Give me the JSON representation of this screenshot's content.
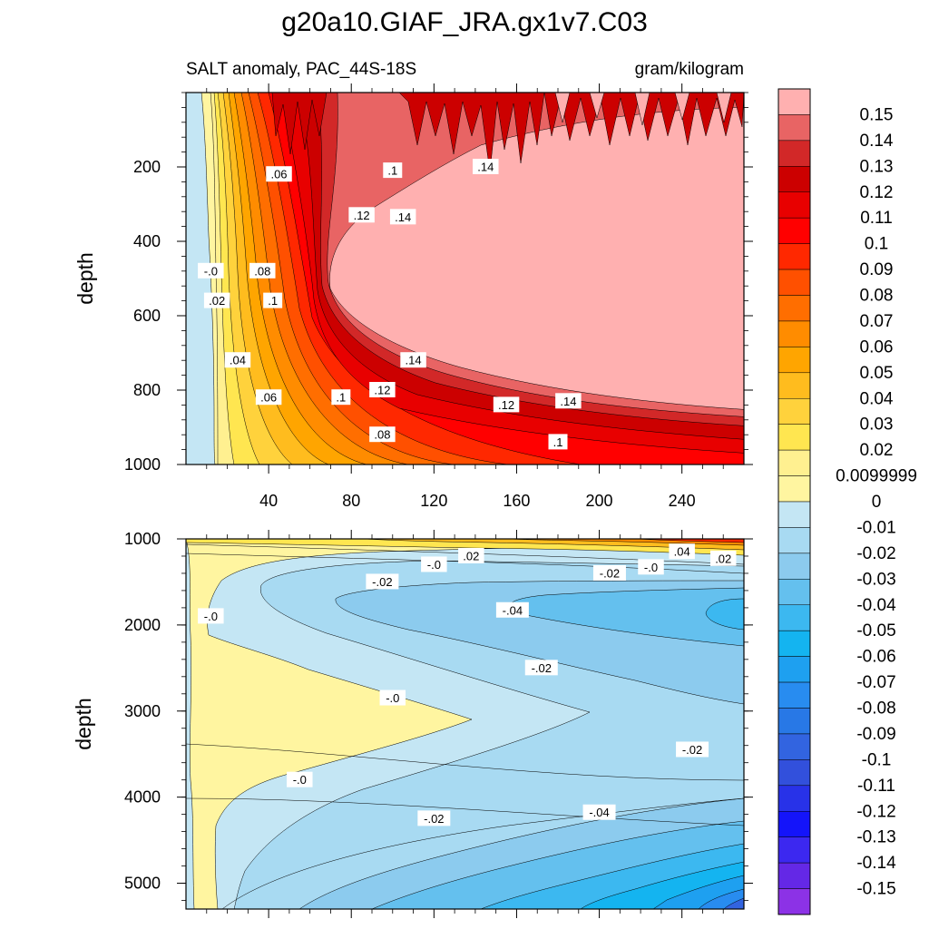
{
  "chart_data": {
    "type": "contour",
    "title": "g20a10.GIAF_JRA.gx1v7.C03",
    "subtitle_left": "SALT anomaly, PAC_44S-18S",
    "subtitle_right": "gram/kilogram",
    "xlabel": "",
    "x_ticks": [
      "40",
      "80",
      "120",
      "160",
      "200",
      "240"
    ],
    "x_tick_values": [
      40,
      80,
      120,
      160,
      200,
      240
    ],
    "xlim": [
      0,
      270
    ],
    "panels": [
      {
        "name": "upper",
        "ylabel": "depth",
        "ylim": [
          0,
          1000
        ],
        "y_ticks": [
          "200",
          "400",
          "600",
          "800",
          "1000"
        ],
        "y_tick_values": [
          200,
          400,
          600,
          800,
          1000
        ],
        "contour_labels": [
          {
            "text": ".06",
            "x": 45,
            "y": 220
          },
          {
            "text": ".1",
            "x": 100,
            "y": 210
          },
          {
            "text": ".14",
            "x": 145,
            "y": 200
          },
          {
            "text": ".12",
            "x": 85,
            "y": 330
          },
          {
            "text": ".14",
            "x": 105,
            "y": 335
          },
          {
            "text": "-.0",
            "x": 12,
            "y": 480
          },
          {
            "text": ".08",
            "x": 37,
            "y": 480
          },
          {
            "text": ".02",
            "x": 15,
            "y": 560
          },
          {
            "text": ".1",
            "x": 42,
            "y": 560
          },
          {
            "text": ".04",
            "x": 25,
            "y": 720
          },
          {
            "text": ".14",
            "x": 110,
            "y": 720
          },
          {
            "text": ".06",
            "x": 40,
            "y": 820
          },
          {
            "text": ".1",
            "x": 75,
            "y": 820
          },
          {
            "text": ".12",
            "x": 95,
            "y": 800
          },
          {
            "text": ".12",
            "x": 155,
            "y": 840
          },
          {
            "text": ".14",
            "x": 185,
            "y": 830
          },
          {
            "text": ".08",
            "x": 95,
            "y": 920
          },
          {
            "text": ".1",
            "x": 180,
            "y": 940
          }
        ]
      },
      {
        "name": "lower",
        "ylabel": "depth",
        "ylim": [
          1000,
          5300
        ],
        "y_ticks": [
          "1000",
          "2000",
          "3000",
          "4000",
          "5000"
        ],
        "y_tick_values": [
          1000,
          2000,
          3000,
          4000,
          5000
        ],
        "contour_labels": [
          {
            "text": "-.0",
            "x": 120,
            "y": 1300
          },
          {
            "text": ".02",
            "x": 138,
            "y": 1200
          },
          {
            "text": ".04",
            "x": 240,
            "y": 1150
          },
          {
            "text": ".02",
            "x": 260,
            "y": 1230
          },
          {
            "text": "-.02",
            "x": 95,
            "y": 1500
          },
          {
            "text": "-.02",
            "x": 205,
            "y": 1400
          },
          {
            "text": "-.0",
            "x": 225,
            "y": 1330
          },
          {
            "text": "-.0",
            "x": 12,
            "y": 1900
          },
          {
            "text": "-.04",
            "x": 158,
            "y": 1830
          },
          {
            "text": "-.02",
            "x": 172,
            "y": 2500
          },
          {
            "text": "-.0",
            "x": 100,
            "y": 2850
          },
          {
            "text": "-.02",
            "x": 245,
            "y": 3450
          },
          {
            "text": "-.0",
            "x": 55,
            "y": 3800
          },
          {
            "text": "-.02",
            "x": 120,
            "y": 4250
          },
          {
            "text": "-.04",
            "x": 200,
            "y": 4180
          }
        ]
      }
    ],
    "colorbar": {
      "labels": [
        "0.15",
        "0.14",
        "0.13",
        "0.12",
        "0.11",
        "0.1",
        "0.09",
        "0.08",
        "0.07",
        "0.06",
        "0.05",
        "0.04",
        "0.03",
        "0.02",
        "0.0099999",
        "0",
        "-0.01",
        "-0.02",
        "-0.03",
        "-0.04",
        "-0.05",
        "-0.06",
        "-0.07",
        "-0.08",
        "-0.09",
        "-0.1",
        "-0.11",
        "-0.12",
        "-0.13",
        "-0.14",
        "-0.15"
      ],
      "colors": [
        "#FFB0B0",
        "#E86464",
        "#D22828",
        "#CC0000",
        "#E80000",
        "#FF0000",
        "#FF2800",
        "#FF5000",
        "#FF6E00",
        "#FF8C00",
        "#FFA500",
        "#FFBC1E",
        "#FFD23C",
        "#FFE650",
        "#FFF090",
        "#FFF5A0",
        "#C4E6F4",
        "#A8DAF2",
        "#8CCBEE",
        "#64C0EE",
        "#3CB8F0",
        "#14B4F0",
        "#1EA0F0",
        "#288CF0",
        "#2878E6",
        "#3264E0",
        "#3250DC",
        "#2832E8",
        "#1414FA",
        "#3C28F0",
        "#6428E6",
        "#8C32E6"
      ]
    }
  }
}
